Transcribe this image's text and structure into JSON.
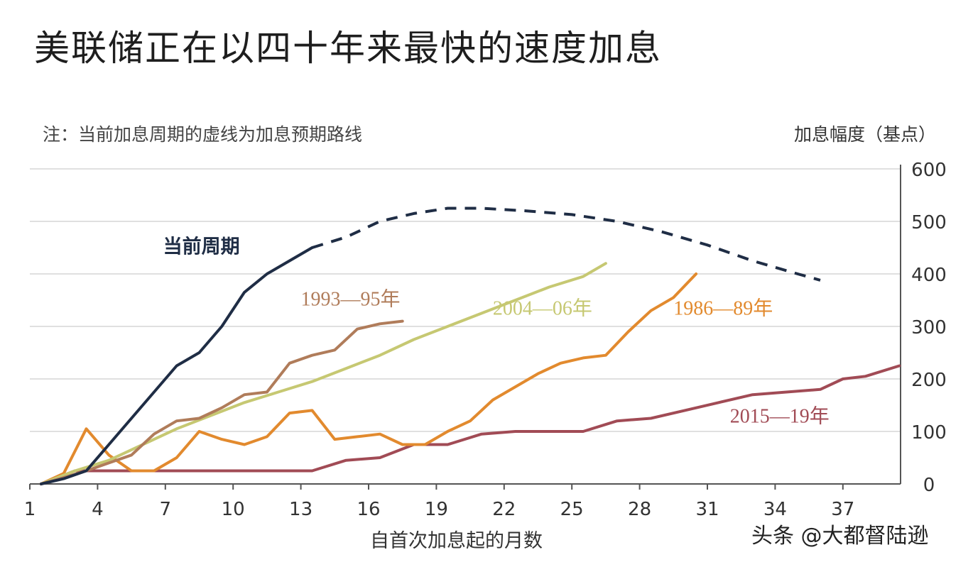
{
  "title": "美联储正在以四十年来最快的速度加息",
  "note": "注：当前加息周期的虚线为加息预期路线",
  "credit": "头条 @大都督陆逊",
  "chart_data": {
    "type": "line",
    "title": "美联储正在以四十年来最快的速度加息",
    "xlabel": "自首次加息起的月数",
    "ylabel": "加息幅度（基点）",
    "xlim": [
      1,
      39
    ],
    "ylim": [
      0,
      600
    ],
    "x_ticks": [
      1,
      4,
      7,
      10,
      13,
      16,
      19,
      22,
      25,
      28,
      31,
      34,
      37
    ],
    "y_ticks": [
      0,
      100,
      200,
      300,
      400,
      500,
      600
    ],
    "grid": true,
    "series": [
      {
        "name": "当前周期",
        "color": "#1f2d45",
        "style": "solid",
        "label_at": [
          8.6,
          440
        ],
        "points": [
          [
            1.5,
            0
          ],
          [
            2.5,
            10
          ],
          [
            3.5,
            25
          ],
          [
            4.5,
            75
          ],
          [
            5.5,
            125
          ],
          [
            6.5,
            175
          ],
          [
            7.5,
            225
          ],
          [
            8.5,
            250
          ],
          [
            9.5,
            300
          ],
          [
            10.5,
            365
          ],
          [
            11.5,
            400
          ],
          [
            12.5,
            425
          ],
          [
            13.5,
            450
          ]
        ]
      },
      {
        "name": "当前周期预期",
        "color": "#1f2d45",
        "style": "dashed",
        "points": [
          [
            13.5,
            450
          ],
          [
            15,
            470
          ],
          [
            16.5,
            500
          ],
          [
            18,
            515
          ],
          [
            19.5,
            525
          ],
          [
            21,
            525
          ],
          [
            23,
            520
          ],
          [
            25,
            513
          ],
          [
            27,
            500
          ],
          [
            29,
            480
          ],
          [
            31,
            455
          ],
          [
            33,
            425
          ],
          [
            35,
            400
          ],
          [
            36,
            388
          ]
        ]
      },
      {
        "name": "1993—95年",
        "color": "#b07c5a",
        "style": "solid",
        "label_at": [
          15.2,
          340
        ],
        "points": [
          [
            1.5,
            0
          ],
          [
            2.5,
            12
          ],
          [
            3.5,
            25
          ],
          [
            4.5,
            40
          ],
          [
            5.5,
            55
          ],
          [
            6.5,
            95
          ],
          [
            7.5,
            120
          ],
          [
            8.5,
            125
          ],
          [
            9.5,
            145
          ],
          [
            10.5,
            170
          ],
          [
            11.5,
            175
          ],
          [
            12.5,
            230
          ],
          [
            13.5,
            245
          ],
          [
            14.5,
            255
          ],
          [
            15.5,
            295
          ],
          [
            16.5,
            305
          ],
          [
            17.5,
            310
          ]
        ]
      },
      {
        "name": "2004—06年",
        "color": "#c6c872",
        "style": "solid",
        "label_at": [
          23.7,
          322
        ],
        "points": [
          [
            1.5,
            0
          ],
          [
            3,
            25
          ],
          [
            4.5,
            45
          ],
          [
            6,
            75
          ],
          [
            7.5,
            105
          ],
          [
            9,
            130
          ],
          [
            10.5,
            155
          ],
          [
            12,
            175
          ],
          [
            13.5,
            195
          ],
          [
            15,
            220
          ],
          [
            16.5,
            245
          ],
          [
            18,
            275
          ],
          [
            19.5,
            300
          ],
          [
            21,
            325
          ],
          [
            22.5,
            350
          ],
          [
            24,
            375
          ],
          [
            25.5,
            395
          ],
          [
            26.5,
            420
          ]
        ]
      },
      {
        "name": "1986—89年",
        "color": "#e28a2e",
        "style": "solid",
        "label_at": [
          31.7,
          322
        ],
        "points": [
          [
            1.5,
            0
          ],
          [
            2.5,
            20
          ],
          [
            3.5,
            105
          ],
          [
            4.5,
            55
          ],
          [
            5.5,
            25
          ],
          [
            6.5,
            25
          ],
          [
            7.5,
            50
          ],
          [
            8.5,
            100
          ],
          [
            9.5,
            85
          ],
          [
            10.5,
            75
          ],
          [
            11.5,
            90
          ],
          [
            12.5,
            135
          ],
          [
            13.5,
            140
          ],
          [
            14.5,
            85
          ],
          [
            15.5,
            90
          ],
          [
            16.5,
            95
          ],
          [
            17.5,
            75
          ],
          [
            18.5,
            75
          ],
          [
            19.5,
            100
          ],
          [
            20.5,
            120
          ],
          [
            21.5,
            160
          ],
          [
            22.5,
            185
          ],
          [
            23.5,
            210
          ],
          [
            24.5,
            230
          ],
          [
            25.5,
            240
          ],
          [
            26.5,
            245
          ],
          [
            27.5,
            290
          ],
          [
            28.5,
            330
          ],
          [
            29.5,
            355
          ],
          [
            30.5,
            400
          ]
        ]
      },
      {
        "name": "2015—19年",
        "color": "#a14b55",
        "style": "solid",
        "label_at": [
          34.2,
          117
        ],
        "points": [
          [
            1.5,
            0
          ],
          [
            3,
            25
          ],
          [
            4.5,
            25
          ],
          [
            6,
            25
          ],
          [
            7.5,
            25
          ],
          [
            9,
            25
          ],
          [
            10.5,
            25
          ],
          [
            12,
            25
          ],
          [
            13.5,
            25
          ],
          [
            15,
            45
          ],
          [
            16.5,
            50
          ],
          [
            18,
            75
          ],
          [
            19.5,
            75
          ],
          [
            21,
            95
          ],
          [
            22.5,
            100
          ],
          [
            24,
            100
          ],
          [
            25.5,
            100
          ],
          [
            27,
            120
          ],
          [
            28.5,
            125
          ],
          [
            30,
            140
          ],
          [
            31.5,
            155
          ],
          [
            33,
            170
          ],
          [
            34.5,
            175
          ],
          [
            36,
            180
          ],
          [
            37,
            200
          ],
          [
            38,
            205
          ],
          [
            39.5,
            225
          ]
        ]
      }
    ]
  }
}
